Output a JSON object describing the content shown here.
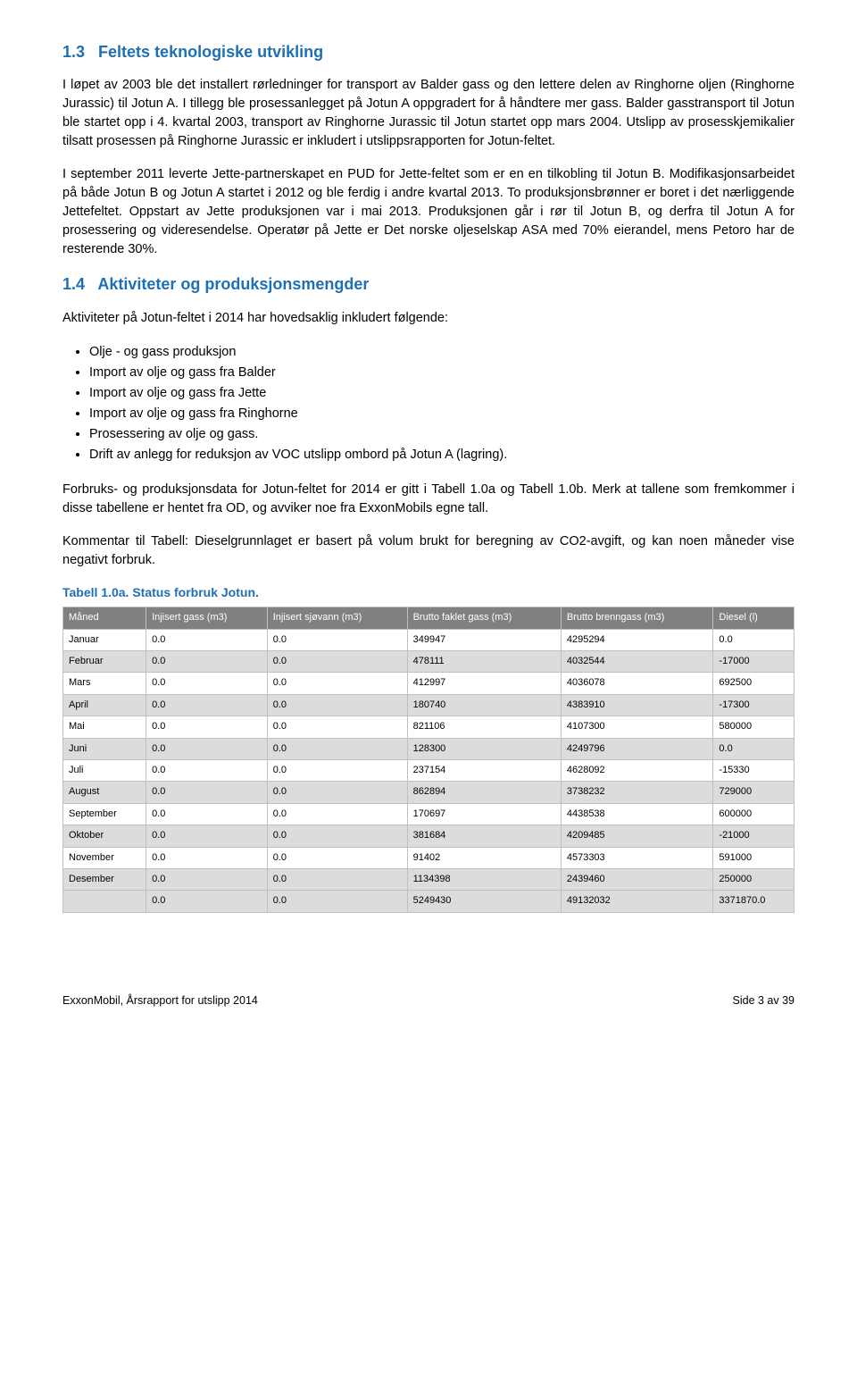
{
  "section1": {
    "num": "1.3",
    "title": "Feltets teknologiske utvikling",
    "paragraphs": [
      "I løpet av 2003 ble det installert rørledninger for transport av Balder gass og den lettere delen av Ringhorne oljen (Ringhorne Jurassic) til Jotun A. I tillegg ble prosessanlegget på Jotun A oppgradert for å håndtere mer gass. Balder gasstransport til Jotun ble startet opp i 4. kvartal 2003, transport av Ringhorne Jurassic til Jotun startet opp mars 2004. Utslipp av prosesskjemikalier tilsatt prosessen på Ringhorne Jurassic er inkludert i utslippsrapporten for Jotun-feltet.",
      "I september 2011 leverte Jette-partnerskapet en PUD for Jette-feltet som er en en tilkobling til Jotun B. Modifikasjonsarbeidet på både Jotun B og Jotun A startet i 2012 og ble ferdig i andre kvartal 2013. To produksjonsbrønner er boret i det nærliggende Jettefeltet. Oppstart av Jette produksjonen var i mai 2013. Produksjonen går i rør til Jotun B, og derfra til Jotun A for prosessering og videresendelse. Operatør på Jette er Det norske oljeselskap ASA med 70% eierandel, mens Petoro har de resterende 30%."
    ]
  },
  "section2": {
    "num": "1.4",
    "title": "Aktiviteter og produksjonsmengder",
    "intro": "Aktiviteter på Jotun-feltet i 2014 har hovedsaklig inkludert følgende:",
    "bullets": [
      "Olje - og gass produksjon",
      "Import av olje og gass fra Balder",
      "Import av olje og gass fra Jette",
      "Import av olje og gass fra Ringhorne",
      "Prosessering av olje og gass.",
      "Drift av anlegg for reduksjon av VOC utslipp ombord på Jotun A (lagring)."
    ],
    "para_after_bullets_1": "Forbruks- og produksjonsdata for Jotun-feltet for 2014 er gitt i Tabell 1.0a og Tabell 1.0b. Merk at tallene som fremkommer i disse tabellene er hentet fra OD, og avviker noe fra ExxonMobils egne tall.",
    "para_after_bullets_2": "Kommentar til Tabell: Dieselgrunnlaget er basert på volum brukt for beregning av CO2-avgift, og kan noen måneder vise negativt forbruk."
  },
  "table": {
    "caption": "Tabell 1.0a. Status forbruk Jotun.",
    "columns": [
      "Måned",
      "Injisert gass (m3)",
      "Injisert sjøvann (m3)",
      "Brutto faklet gass (m3)",
      "Brutto brenngass (m3)",
      "Diesel (l)"
    ],
    "rows": [
      [
        "Januar",
        "0.0",
        "0.0",
        "349947",
        "4295294",
        "0.0"
      ],
      [
        "Februar",
        "0.0",
        "0.0",
        "478111",
        "4032544",
        "-17000"
      ],
      [
        "Mars",
        "0.0",
        "0.0",
        "412997",
        "4036078",
        "692500"
      ],
      [
        "April",
        "0.0",
        "0.0",
        "180740",
        "4383910",
        "-17300"
      ],
      [
        "Mai",
        "0.0",
        "0.0",
        "821106",
        "4107300",
        "580000"
      ],
      [
        "Juni",
        "0.0",
        "0.0",
        "128300",
        "4249796",
        "0.0"
      ],
      [
        "Juli",
        "0.0",
        "0.0",
        "237154",
        "4628092",
        "-15330"
      ],
      [
        "August",
        "0.0",
        "0.0",
        "862894",
        "3738232",
        "729000"
      ],
      [
        "September",
        "0.0",
        "0.0",
        "170697",
        "4438538",
        "600000"
      ],
      [
        "Oktober",
        "0.0",
        "0.0",
        "381684",
        "4209485",
        "-21000"
      ],
      [
        "November",
        "0.0",
        "0.0",
        "91402",
        "4573303",
        "591000"
      ],
      [
        "Desember",
        "0.0",
        "0.0",
        "1134398",
        "2439460",
        "250000"
      ],
      [
        "",
        "0.0",
        "0.0",
        "5249430",
        "49132032",
        "3371870.0"
      ]
    ]
  },
  "footer": {
    "left": "ExxonMobil, Årsrapport for utslipp 2014",
    "right": "Side 3 av 39"
  },
  "colors": {
    "heading": "#1f6fb3",
    "table_header_bg": "#808080",
    "table_header_fg": "#ffffff",
    "row_even_bg": "#dcdcdc",
    "row_odd_bg": "#ffffff",
    "border": "#bfbfbf"
  }
}
